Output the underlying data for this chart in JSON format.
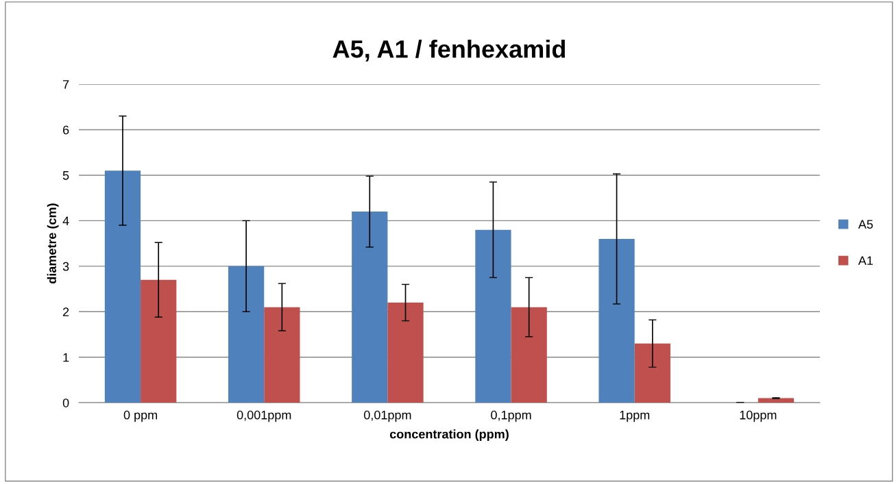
{
  "chart_data": {
    "type": "bar",
    "title": "A5, A1 / fenhexamid",
    "xlabel": "concentration (ppm)",
    "ylabel": "diametre (cm)",
    "categories": [
      "0 ppm",
      "0,001ppm",
      "0,01ppm",
      "0,1ppm",
      "1ppm",
      "10ppm"
    ],
    "series": [
      {
        "name": "A5",
        "color": "#4f81bd",
        "values": [
          5.1,
          3.0,
          4.2,
          3.8,
          3.6,
          0
        ],
        "errors": [
          1.2,
          1.0,
          0.78,
          1.05,
          1.43,
          0
        ]
      },
      {
        "name": "A1",
        "color": "#c0504d",
        "values": [
          2.7,
          2.1,
          2.2,
          2.1,
          1.3,
          0.1
        ],
        "errors": [
          0.82,
          0.52,
          0.4,
          0.65,
          0.52,
          0.01
        ]
      }
    ],
    "ylim": [
      0,
      7
    ],
    "yticks": [
      0,
      1,
      2,
      3,
      4,
      5,
      6,
      7
    ],
    "grid": "y",
    "legend": "right"
  }
}
